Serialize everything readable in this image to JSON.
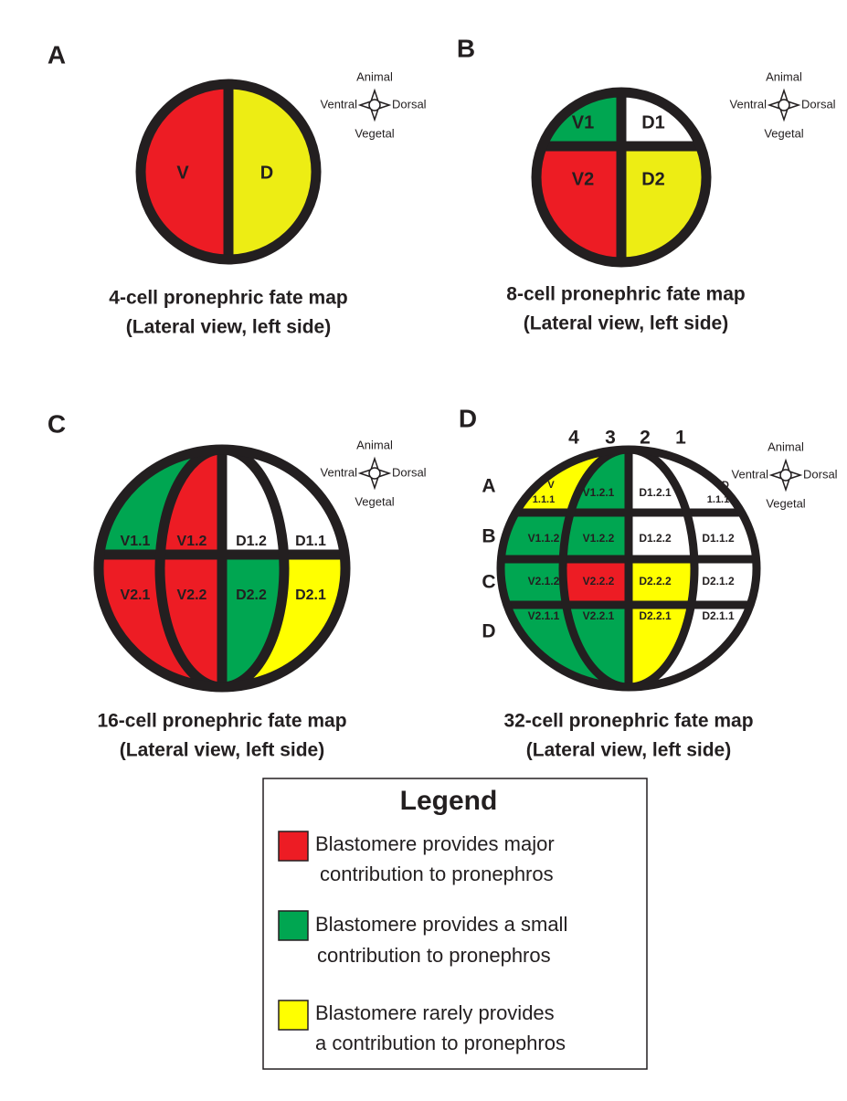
{
  "panels": [
    {
      "letter": "A",
      "compass": {
        "top": "Animal",
        "left": "Ventral",
        "right": "Dorsal",
        "bottom": "Vegetal"
      },
      "cells": [
        "V",
        "D"
      ],
      "caption": [
        "4-cell pronephric fate map",
        "(Lateral view, left side)"
      ]
    },
    {
      "letter": "B",
      "compass": {
        "top": "Animal",
        "left": "Ventral",
        "right": "Dorsal",
        "bottom": "Vegetal"
      },
      "cells": [
        "V1",
        "D1",
        "V2",
        "D2"
      ],
      "caption": [
        "8-cell pronephric fate map",
        "(Lateral view, left side)"
      ]
    },
    {
      "letter": "C",
      "compass": {
        "top": "Animal",
        "left": "Ventral",
        "right": "Dorsal",
        "bottom": "Vegetal"
      },
      "cells": [
        "V1.1",
        "V1.2",
        "D1.2",
        "D1.1",
        "V2.1",
        "V2.2",
        "D2.2",
        "D2.1"
      ],
      "caption": [
        "16-cell pronephric fate map",
        "(Lateral view, left side)"
      ]
    },
    {
      "letter": "D",
      "compass": {
        "top": "Animal",
        "left": "Ventral",
        "right": "Dorsal",
        "bottom": "Vegetal"
      },
      "column_labels": [
        "4",
        "3",
        "2",
        "1"
      ],
      "row_labels": [
        "A",
        "B",
        "C",
        "D"
      ],
      "cells": [
        [
          "V",
          "1.1.1"
        ],
        "V1.2.1",
        "D1.2.1",
        [
          "D",
          "1.1.1"
        ],
        "V1.1.2",
        "V1.2.2",
        "D1.2.2",
        "D1.1.2",
        "V2.1.2",
        "V2.2.2",
        "D2.2.2",
        "D2.1.2",
        "V2.1.1",
        "V2.2.1",
        "D2.2.1",
        "D2.1.1"
      ],
      "caption": [
        "32-cell pronephric fate map",
        "(Lateral view, left side)"
      ]
    }
  ],
  "legend": {
    "title": "Legend",
    "items": [
      [
        "Blastomere provides major",
        "contribution to pronephros"
      ],
      [
        "Blastomere provides a small",
        "contribution to pronephros"
      ],
      [
        "Blastomere rarely provides",
        "a contribution to pronephros"
      ]
    ]
  }
}
